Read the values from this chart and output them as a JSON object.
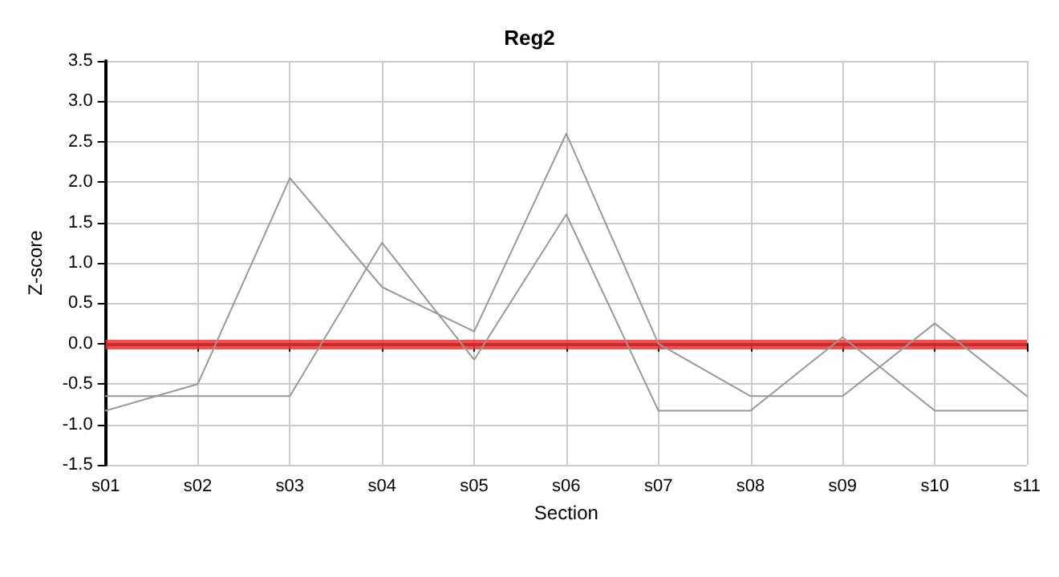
{
  "chart_data": {
    "type": "line",
    "title": "Reg2",
    "xlabel": "Section",
    "ylabel": "Z-score",
    "categories": [
      "s01",
      "s02",
      "s03",
      "s04",
      "s05",
      "s06",
      "s07",
      "s08",
      "s09",
      "s10",
      "s11"
    ],
    "series": [
      {
        "color": "#999999",
        "values": [
          -0.83,
          -0.5,
          2.05,
          0.7,
          0.15,
          2.6,
          0.0,
          -0.65,
          -0.65,
          0.25,
          -0.65
        ]
      },
      {
        "color": "#999999",
        "values": [
          -0.65,
          -0.65,
          -0.65,
          1.25,
          -0.2,
          1.6,
          -0.83,
          -0.83,
          0.08,
          -0.83,
          -0.83
        ]
      }
    ],
    "ylim": [
      -1.5,
      3.5
    ],
    "yticks": [
      {
        "value": -1.5,
        "label": "-1.5"
      },
      {
        "value": -1,
        "label": "-1.0"
      },
      {
        "value": -0.5,
        "label": "-0.5"
      },
      {
        "value": 0,
        "label": "0.0"
      },
      {
        "value": 0.5,
        "label": "0.5"
      },
      {
        "value": 1,
        "label": "1.0"
      },
      {
        "value": 1.5,
        "label": "1.5"
      },
      {
        "value": 2,
        "label": "2.0"
      },
      {
        "value": 2.5,
        "label": "2.5"
      },
      {
        "value": 3,
        "label": "3.0"
      },
      {
        "value": 3.5,
        "label": "3.5"
      }
    ],
    "ref_lines": [
      {
        "axis": "y",
        "value": 0,
        "color": "#ee3333"
      }
    ],
    "grid": true,
    "marker": "none",
    "line_style": "solid"
  }
}
